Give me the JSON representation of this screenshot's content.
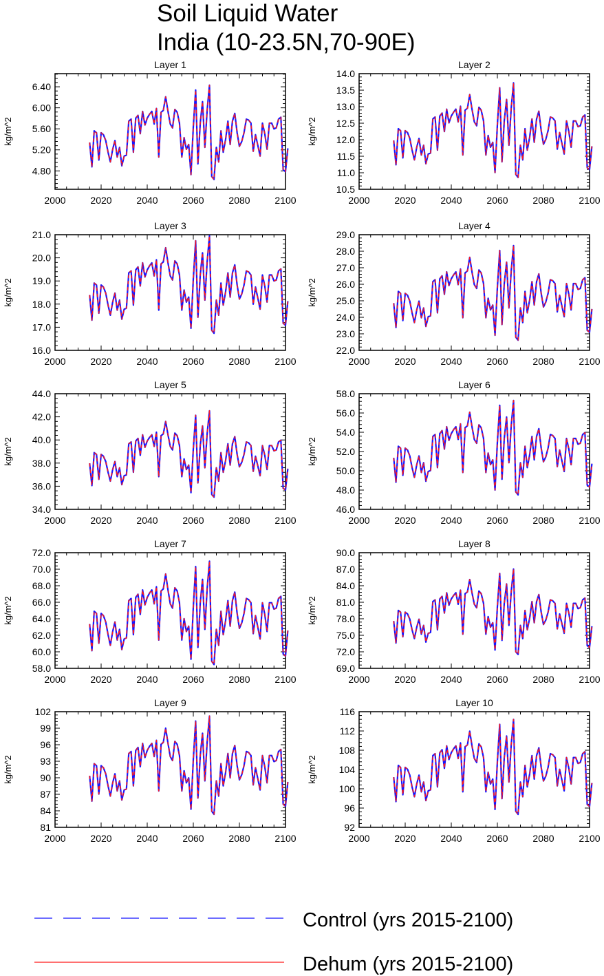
{
  "title": "Soil Liquid Water",
  "subtitle": "India (10-23.5N,70-90E)",
  "legend": [
    {
      "label": "Control (yrs 2015-2100)",
      "color": "#1515ff",
      "style": "dashed"
    },
    {
      "label": "Dehum (yrs 2015-2100)",
      "color": "#ff1a1a",
      "style": "solid"
    }
  ],
  "chart_data": [
    {
      "type": "line",
      "title": "Layer 1",
      "xlabel": "",
      "ylabel": "kg/m^2",
      "xlim": [
        2000,
        2100
      ],
      "ylim": [
        4.45,
        6.65
      ],
      "xticks": [
        "2000",
        "2020",
        "2040",
        "2060",
        "2080",
        "2100"
      ],
      "yticks": [
        "4.80",
        "5.20",
        "5.60",
        "6.00",
        "6.40"
      ],
      "ytickvals": [
        4.8,
        5.2,
        5.6,
        6.0,
        6.4
      ],
      "lo": 4.6,
      "hi": 6.45,
      "x_start": 2015,
      "x_end": 2100,
      "series": [
        {
          "name": "Control (yrs 2015-2100)"
        },
        {
          "name": "Dehum (yrs 2015-2100)"
        }
      ]
    },
    {
      "type": "line",
      "title": "Layer 2",
      "xlabel": "",
      "ylabel": "kg/m^2",
      "xlim": [
        2000,
        2100
      ],
      "ylim": [
        10.5,
        14.0
      ],
      "xticks": [
        "2000",
        "2020",
        "2040",
        "2060",
        "2080",
        "2100"
      ],
      "yticks": [
        "10.5",
        "11.0",
        "11.5",
        "12.0",
        "12.5",
        "13.0",
        "13.5",
        "14.0"
      ],
      "ytickvals": [
        10.5,
        11.0,
        11.5,
        12.0,
        12.5,
        13.0,
        13.5,
        14.0
      ],
      "lo": 10.8,
      "hi": 13.75,
      "x_start": 2015,
      "x_end": 2100,
      "series": [
        {
          "name": "Control (yrs 2015-2100)"
        },
        {
          "name": "Dehum (yrs 2015-2100)"
        }
      ]
    },
    {
      "type": "line",
      "title": "Layer 3",
      "xlabel": "",
      "ylabel": "kg/m^2",
      "xlim": [
        2000,
        2100
      ],
      "ylim": [
        16.0,
        21.0
      ],
      "xticks": [
        "2000",
        "2020",
        "2040",
        "2060",
        "2080",
        "2100"
      ],
      "yticks": [
        "16.0",
        "17.0",
        "18.0",
        "19.0",
        "20.0",
        "21.0"
      ],
      "ytickvals": [
        16,
        17,
        18,
        19,
        20,
        21
      ],
      "lo": 16.65,
      "hi": 21.0,
      "x_start": 2015,
      "x_end": 2100,
      "series": [
        {
          "name": "Control (yrs 2015-2100)"
        },
        {
          "name": "Dehum (yrs 2015-2100)"
        }
      ]
    },
    {
      "type": "line",
      "title": "Layer 4",
      "xlabel": "",
      "ylabel": "kg/m^2",
      "xlim": [
        2000,
        2100
      ],
      "ylim": [
        22.0,
        29.0
      ],
      "xticks": [
        "2000",
        "2020",
        "2040",
        "2060",
        "2080",
        "2100"
      ],
      "yticks": [
        "22.0",
        "23.0",
        "24.0",
        "25.0",
        "26.0",
        "27.0",
        "28.0",
        "29.0"
      ],
      "ytickvals": [
        22,
        23,
        24,
        25,
        26,
        27,
        28,
        29
      ],
      "lo": 22.5,
      "hi": 28.4,
      "x_start": 2015,
      "x_end": 2100,
      "series": [
        {
          "name": "Control (yrs 2015-2100)"
        },
        {
          "name": "Dehum (yrs 2015-2100)"
        }
      ]
    },
    {
      "type": "line",
      "title": "Layer 5",
      "xlabel": "",
      "ylabel": "kg/m^2",
      "xlim": [
        2000,
        2100
      ],
      "ylim": [
        34.0,
        44.0
      ],
      "xticks": [
        "2000",
        "2020",
        "2040",
        "2060",
        "2080",
        "2100"
      ],
      "yticks": [
        "34.0",
        "36.0",
        "38.0",
        "40.0",
        "42.0",
        "44.0"
      ],
      "ytickvals": [
        34,
        36,
        38,
        40,
        42,
        44
      ],
      "lo": 34.9,
      "hi": 42.6,
      "x_start": 2015,
      "x_end": 2100,
      "series": [
        {
          "name": "Control (yrs 2015-2100)"
        },
        {
          "name": "Dehum (yrs 2015-2100)"
        }
      ]
    },
    {
      "type": "line",
      "title": "Layer 6",
      "xlabel": "",
      "ylabel": "kg/m^2",
      "xlim": [
        2000,
        2100
      ],
      "ylim": [
        46.0,
        58.0
      ],
      "xticks": [
        "2000",
        "2020",
        "2040",
        "2060",
        "2080",
        "2100"
      ],
      "yticks": [
        "46.0",
        "48.0",
        "50.0",
        "52.0",
        "54.0",
        "56.0",
        "58.0"
      ],
      "ytickvals": [
        46,
        48,
        50,
        52,
        54,
        56,
        58
      ],
      "lo": 47.3,
      "hi": 57.4,
      "x_start": 2015,
      "x_end": 2100,
      "series": [
        {
          "name": "Control (yrs 2015-2100)"
        },
        {
          "name": "Dehum (yrs 2015-2100)"
        }
      ]
    },
    {
      "type": "line",
      "title": "Layer 7",
      "xlabel": "",
      "ylabel": "kg/m^2",
      "xlim": [
        2000,
        2100
      ],
      "ylim": [
        58.0,
        72.0
      ],
      "xticks": [
        "2000",
        "2020",
        "2040",
        "2060",
        "2080",
        "2100"
      ],
      "yticks": [
        "58.0",
        "60.0",
        "62.0",
        "64.0",
        "66.0",
        "68.0",
        "70.0",
        "72.0"
      ],
      "ytickvals": [
        58,
        60,
        62,
        64,
        66,
        68,
        70,
        72
      ],
      "lo": 58.2,
      "hi": 71.1,
      "x_start": 2015,
      "x_end": 2100,
      "series": [
        {
          "name": "Control (yrs 2015-2100)"
        },
        {
          "name": "Dehum (yrs 2015-2100)"
        }
      ]
    },
    {
      "type": "line",
      "title": "Layer 8",
      "xlabel": "",
      "ylabel": "kg/m^2",
      "xlim": [
        2000,
        2100
      ],
      "ylim": [
        69.0,
        90.0
      ],
      "xticks": [
        "2000",
        "2020",
        "2040",
        "2060",
        "2080",
        "2100"
      ],
      "yticks": [
        "69.0",
        "72.0",
        "75.0",
        "78.0",
        "81.0",
        "84.0",
        "87.0",
        "90.0"
      ],
      "ytickvals": [
        69,
        72,
        75,
        78,
        81,
        84,
        87,
        90
      ],
      "lo": 71.2,
      "hi": 87.2,
      "x_start": 2015,
      "x_end": 2100,
      "series": [
        {
          "name": "Control (yrs 2015-2100)"
        },
        {
          "name": "Dehum (yrs 2015-2100)"
        }
      ]
    },
    {
      "type": "line",
      "title": "Layer 9",
      "xlabel": "",
      "ylabel": "kg/m^2",
      "xlim": [
        2000,
        2100
      ],
      "ylim": [
        81,
        102
      ],
      "xticks": [
        "2000",
        "2020",
        "2040",
        "2060",
        "2080",
        "2100"
      ],
      "yticks": [
        "81",
        "84",
        "87",
        "90",
        "93",
        "96",
        "99",
        "102"
      ],
      "ytickvals": [
        81,
        84,
        87,
        90,
        93,
        96,
        99,
        102
      ],
      "lo": 83.0,
      "hi": 101.4,
      "x_start": 2015,
      "x_end": 2100,
      "series": [
        {
          "name": "Control (yrs 2015-2100)"
        },
        {
          "name": "Dehum (yrs 2015-2100)"
        }
      ]
    },
    {
      "type": "line",
      "title": "Layer 10",
      "xlabel": "",
      "ylabel": "kg/m^2",
      "xlim": [
        2000,
        2100
      ],
      "ylim": [
        92,
        116
      ],
      "xticks": [
        "2000",
        "2020",
        "2040",
        "2060",
        "2080",
        "2100"
      ],
      "yticks": [
        "92",
        "96",
        "100",
        "104",
        "108",
        "112",
        "116"
      ],
      "ytickvals": [
        92,
        96,
        100,
        104,
        108,
        112,
        116
      ],
      "lo": 94.3,
      "hi": 114.6,
      "x_start": 2015,
      "x_end": 2100,
      "series": [
        {
          "name": "Control (yrs 2015-2100)"
        },
        {
          "name": "Dehum (yrs 2015-2100)"
        }
      ]
    }
  ]
}
